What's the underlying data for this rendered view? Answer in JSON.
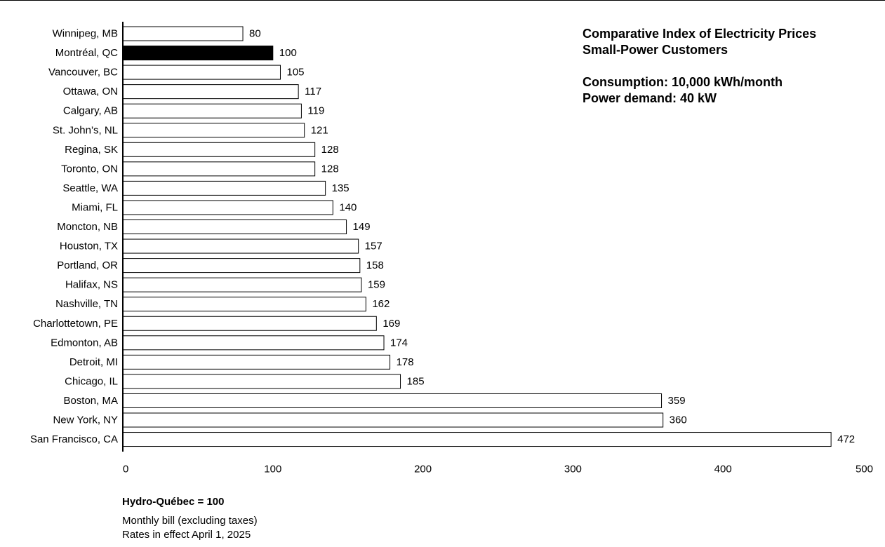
{
  "chart_data": {
    "type": "bar",
    "orientation": "horizontal",
    "title": "Comparative Index of Electricity Prices",
    "subtitle": "Small-Power Customers",
    "annotations": [
      "Consumption: 10,000 kWh/month",
      "Power demand: 40 kW"
    ],
    "categories": [
      "Winnipeg, MB",
      "Montréal, QC",
      "Vancouver, BC",
      "Ottawa, ON",
      "Calgary, AB",
      "St. John’s, NL",
      "Regina, SK",
      "Toronto, ON",
      "Seattle, WA",
      "Miami, FL",
      "Moncton, NB",
      "Houston, TX",
      "Portland, OR",
      "Halifax, NS",
      "Nashville, TN",
      "Charlottetown, PE",
      "Edmonton, AB",
      "Detroit, MI",
      "Chicago, IL",
      "Boston, MA",
      "New York, NY",
      "San Francisco, CA"
    ],
    "values": [
      80,
      100,
      105,
      117,
      119,
      121,
      128,
      128,
      135,
      140,
      149,
      157,
      158,
      159,
      162,
      169,
      174,
      178,
      185,
      359,
      360,
      472
    ],
    "highlight_category": "Montréal, QC",
    "xlim": [
      0,
      500
    ],
    "xticks": [
      0,
      100,
      200,
      300,
      400,
      500
    ],
    "xlabel": "",
    "ylabel": "",
    "grid": false,
    "legend": "none",
    "colors": {
      "bar_fill": "#ffffff",
      "bar_stroke": "#000000",
      "highlight_fill": "#000000"
    }
  },
  "footer": {
    "heading": "Hydro-Québec = 100",
    "lines": [
      "Monthly bill (excluding taxes)",
      "Rates in effect April 1, 2025"
    ]
  }
}
